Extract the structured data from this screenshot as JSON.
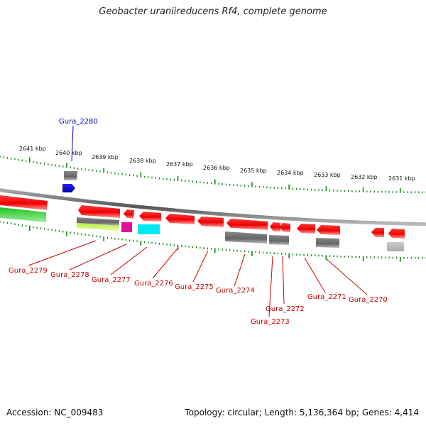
{
  "title": "Geobacter uraniireducens Rf4, complete genome",
  "footer": {
    "accession": "Accession: NC_009483",
    "summary": "Topology: circular; Length: 5,136,364 bp; Genes: 4,414"
  },
  "ruler_labels": [
    "2641 kbp",
    "2640 kbp",
    "2639 kbp",
    "2638 kbp",
    "2637 kbp",
    "2636 kbp",
    "2635 kbp",
    "2634 kbp",
    "2633 kbp",
    "2632 kbp",
    "2631 kbp"
  ],
  "highlight_label": "Gura_2280",
  "gene_labels": [
    "Gura_2279",
    "Gura_2278",
    "Gura_2277",
    "Gura_2276",
    "Gura_2275",
    "Gura_2274",
    "Gura_2272",
    "Gura_2273",
    "Gura_2271",
    "Gura_2270"
  ],
  "colors": {
    "cds": "#ee0000",
    "highlight": "#0000dd",
    "label": "#cc0000",
    "tick": "#118811",
    "backbone": "#888888"
  }
}
